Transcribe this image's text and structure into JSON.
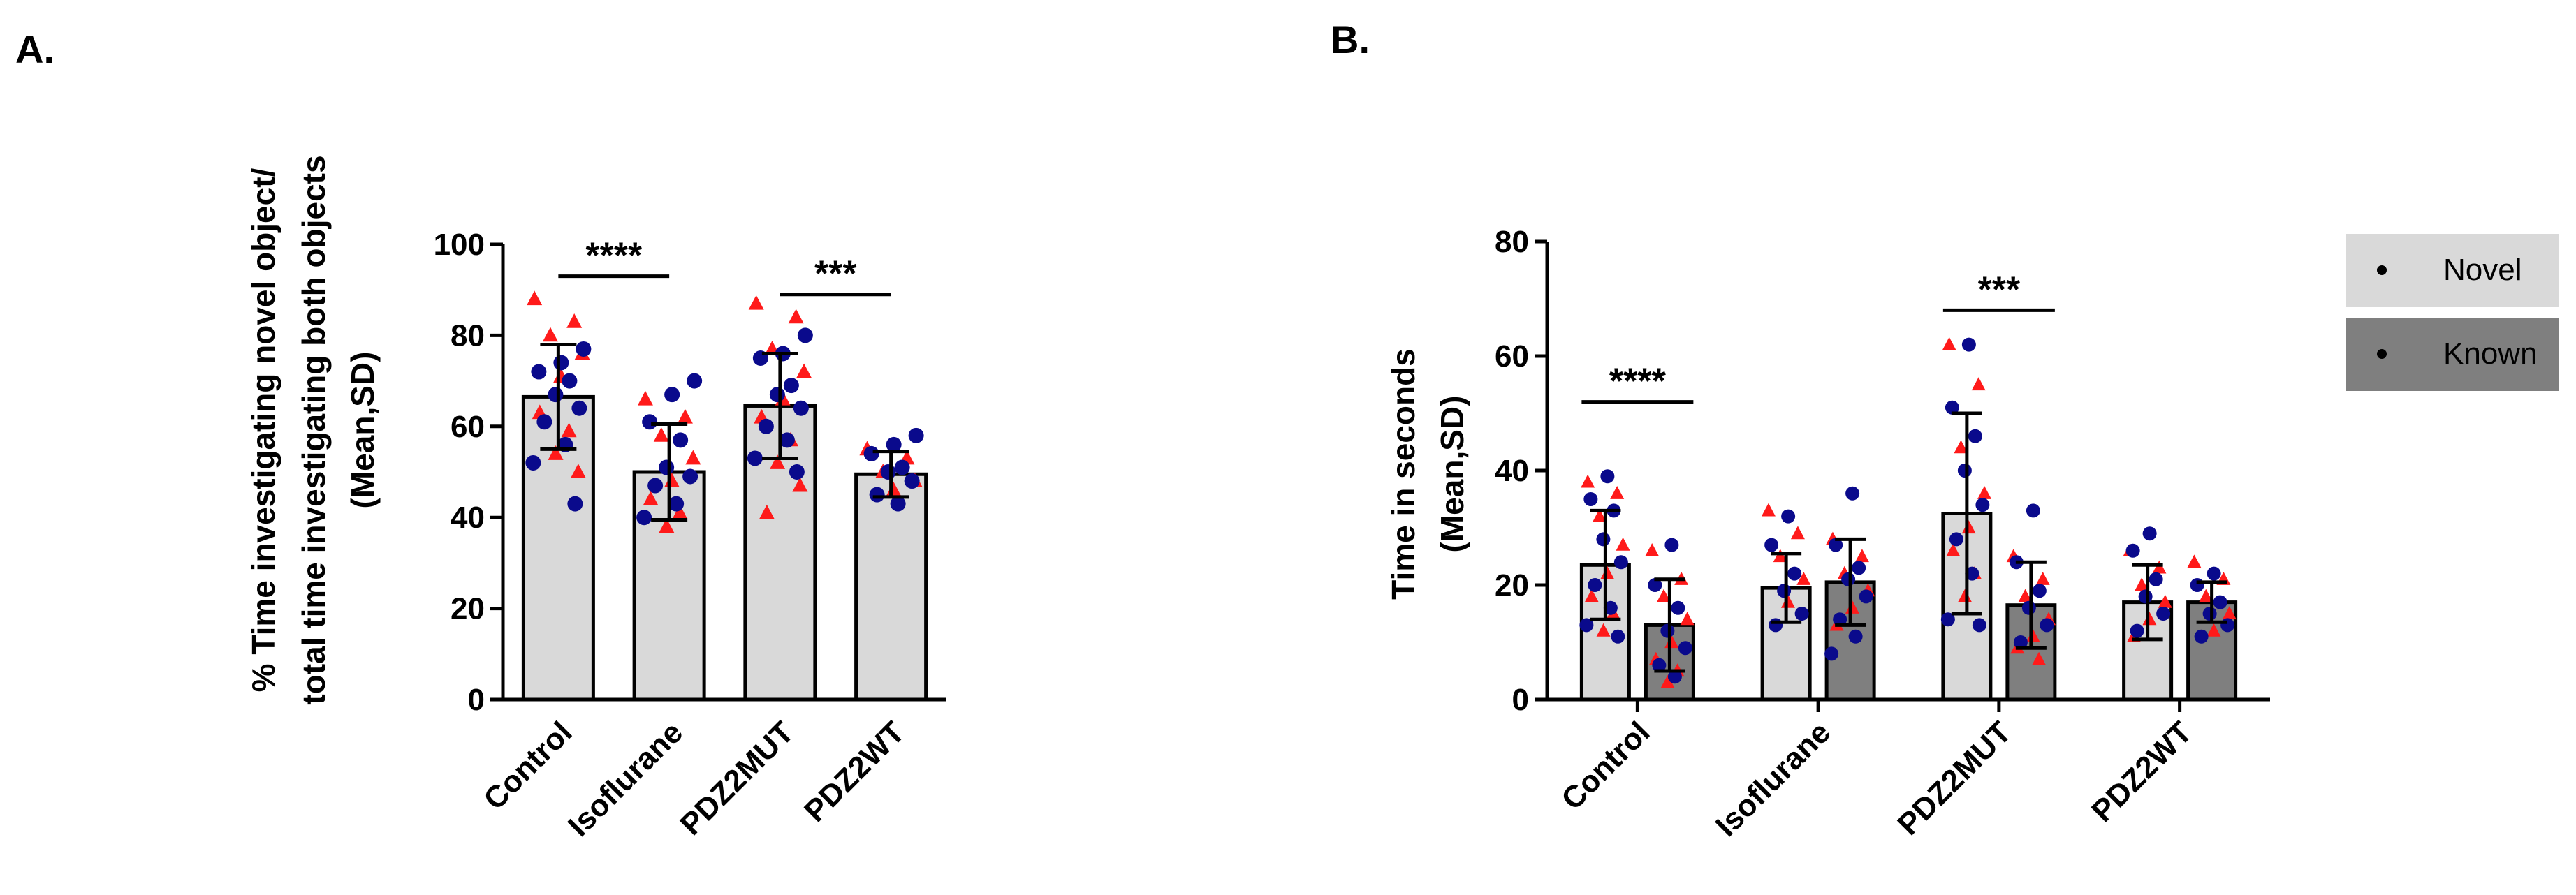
{
  "panels": {
    "a_label": "A.",
    "b_label": "B."
  },
  "chart_data": [
    {
      "type": "bar",
      "title": "",
      "xlabel": "",
      "ylabel_lines": [
        "% Time investigating novel object/",
        "total time investigating both objects",
        "(Mean,SD)"
      ],
      "categories": [
        "Control",
        "Isoflurane",
        "PDZ2MUT",
        "PDZ2WT"
      ],
      "ylim": [
        0,
        100
      ],
      "yticks": [
        0,
        20,
        40,
        60,
        80,
        100
      ],
      "grid": false,
      "bar_color": "#d9d9d9",
      "series": [
        {
          "values": [
            66.5,
            50,
            64.5,
            49.5
          ],
          "sd": [
            11.5,
            10.5,
            11.5,
            5
          ]
        }
      ],
      "points": [
        {
          "category": 0,
          "red": [
            88,
            83,
            80,
            76,
            71,
            63,
            59,
            54,
            50
          ],
          "navy": [
            77,
            74,
            72,
            70,
            67,
            64,
            61,
            56,
            52,
            43
          ]
        },
        {
          "category": 1,
          "red": [
            66,
            62,
            58,
            53,
            48,
            44,
            41,
            38
          ],
          "navy": [
            70,
            67,
            61,
            57,
            51,
            49,
            47,
            43,
            40
          ]
        },
        {
          "category": 2,
          "red": [
            87,
            84,
            77,
            72,
            66,
            62,
            57,
            52,
            47,
            41
          ],
          "navy": [
            80,
            76,
            75,
            69,
            67,
            64,
            60,
            57,
            53,
            50
          ]
        },
        {
          "category": 3,
          "red": [
            55,
            53,
            50,
            48,
            46
          ],
          "navy": [
            58,
            56,
            54,
            51,
            50,
            48,
            45,
            43
          ]
        }
      ],
      "significance": [
        {
          "from": 0,
          "to": 1,
          "label": "****",
          "y": 93
        },
        {
          "from": 2,
          "to": 3,
          "label": "***",
          "y": 89
        }
      ]
    },
    {
      "type": "bar",
      "title": "",
      "xlabel": "",
      "ylabel_lines": [
        "Time in seconds",
        "(Mean,SD)"
      ],
      "categories": [
        "Control",
        "Isoflurane",
        "PDZ2MUT",
        "PDZ2WT"
      ],
      "ylim": [
        0,
        80
      ],
      "yticks": [
        0,
        20,
        40,
        60,
        80
      ],
      "grid": false,
      "legend_placement": "right",
      "series": [
        {
          "name": "Novel",
          "color": "#d9d9d9",
          "values": [
            23.5,
            19.5,
            32.5,
            17
          ],
          "sd": [
            9.5,
            6,
            17.5,
            6.5
          ],
          "red": [
            38,
            36,
            32,
            27,
            22,
            18,
            15,
            12
          ],
          "navy": [
            39,
            35,
            33,
            28,
            24,
            20,
            16,
            13,
            11
          ],
          "red_b": [
            33,
            29,
            25,
            21,
            17
          ],
          "navy_b": [
            32,
            27,
            22,
            19,
            15,
            13
          ],
          "red_c": [
            62,
            55,
            44,
            36,
            30,
            26,
            22,
            18
          ],
          "navy_c": [
            62,
            51,
            46,
            40,
            34,
            28,
            22,
            14,
            13
          ],
          "red_d": [
            26,
            23,
            20,
            17,
            14,
            11
          ],
          "navy_d": [
            29,
            26,
            21,
            18,
            15,
            12
          ]
        },
        {
          "name": "Known",
          "color": "#7f7f7f",
          "values": [
            13,
            20.5,
            16.5,
            17
          ],
          "sd": [
            8,
            7.5,
            7.5,
            3.5
          ],
          "red": [
            26,
            21,
            18,
            14,
            10,
            7,
            5,
            3
          ],
          "navy": [
            27,
            20,
            16,
            12,
            9,
            6,
            4
          ],
          "red_b": [
            28,
            25,
            22,
            19,
            16,
            13
          ],
          "navy_b": [
            36,
            27,
            23,
            21,
            18,
            14,
            11,
            8
          ],
          "red_c": [
            25,
            21,
            18,
            14,
            11,
            9,
            7
          ],
          "navy_c": [
            33,
            24,
            19,
            16,
            13,
            10
          ],
          "red_d": [
            24,
            21,
            18,
            15,
            12
          ],
          "navy_d": [
            22,
            20,
            17,
            15,
            13,
            11
          ]
        }
      ],
      "significance": [
        {
          "category": 0,
          "label": "****",
          "y": 52
        },
        {
          "category": 2,
          "label": "***",
          "y": 68
        }
      ]
    }
  ]
}
